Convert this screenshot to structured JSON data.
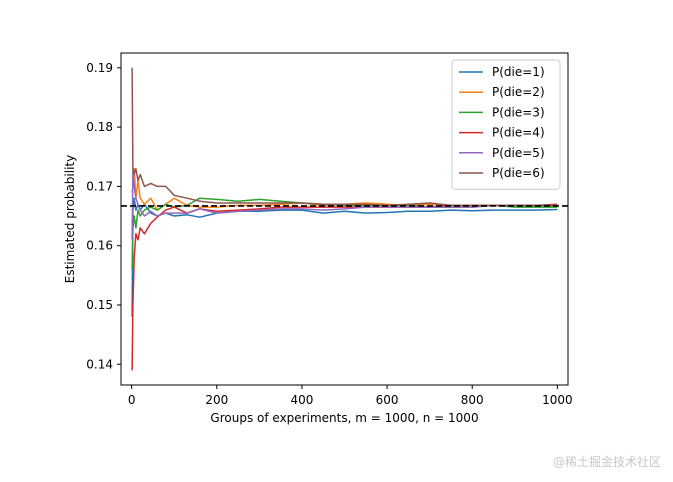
{
  "chart_data": {
    "type": "line",
    "title": "",
    "xlabel": "Groups of experiments, m = 1000, n = 1000",
    "ylabel": "Estimated probability",
    "xlim": [
      -25,
      1025
    ],
    "ylim": [
      0.1365,
      0.1925
    ],
    "xticks": [
      0,
      200,
      400,
      600,
      800,
      1000
    ],
    "xtick_labels": [
      "0",
      "200",
      "400",
      "600",
      "800",
      "1000"
    ],
    "yticks": [
      0.14,
      0.15,
      0.16,
      0.17,
      0.18,
      0.19
    ],
    "ytick_labels": [
      "0.14",
      "0.15",
      "0.16",
      "0.17",
      "0.18",
      "0.19"
    ],
    "grid": false,
    "legend_position": "upper-right",
    "reference_line": {
      "y": 0.1667,
      "style": "dashed",
      "color": "#000000"
    },
    "series": [
      {
        "name": "P(die=1)",
        "color": "#1f77b4",
        "points": [
          [
            1,
            0.148
          ],
          [
            3,
            0.166
          ],
          [
            6,
            0.168
          ],
          [
            10,
            0.166
          ],
          [
            15,
            0.167
          ],
          [
            20,
            0.166
          ],
          [
            30,
            0.167
          ],
          [
            45,
            0.1655
          ],
          [
            60,
            0.165
          ],
          [
            80,
            0.1655
          ],
          [
            100,
            0.165
          ],
          [
            130,
            0.1652
          ],
          [
            160,
            0.1648
          ],
          [
            200,
            0.1655
          ],
          [
            250,
            0.1658
          ],
          [
            300,
            0.1658
          ],
          [
            350,
            0.166
          ],
          [
            400,
            0.166
          ],
          [
            450,
            0.1655
          ],
          [
            500,
            0.1658
          ],
          [
            550,
            0.1655
          ],
          [
            600,
            0.1656
          ],
          [
            650,
            0.1658
          ],
          [
            700,
            0.1658
          ],
          [
            750,
            0.166
          ],
          [
            800,
            0.1659
          ],
          [
            850,
            0.166
          ],
          [
            900,
            0.166
          ],
          [
            950,
            0.166
          ],
          [
            1000,
            0.1661
          ]
        ]
      },
      {
        "name": "P(die=2)",
        "color": "#ff7f0e",
        "points": [
          [
            1,
            0.169
          ],
          [
            3,
            0.17
          ],
          [
            6,
            0.173
          ],
          [
            10,
            0.168
          ],
          [
            15,
            0.171
          ],
          [
            20,
            0.168
          ],
          [
            30,
            0.167
          ],
          [
            45,
            0.168
          ],
          [
            60,
            0.166
          ],
          [
            80,
            0.167
          ],
          [
            100,
            0.168
          ],
          [
            130,
            0.1668
          ],
          [
            160,
            0.1665
          ],
          [
            200,
            0.1665
          ],
          [
            250,
            0.1668
          ],
          [
            300,
            0.1668
          ],
          [
            350,
            0.167
          ],
          [
            400,
            0.1672
          ],
          [
            450,
            0.1668
          ],
          [
            500,
            0.167
          ],
          [
            550,
            0.1672
          ],
          [
            600,
            0.167
          ],
          [
            650,
            0.1668
          ],
          [
            700,
            0.167
          ],
          [
            750,
            0.1668
          ],
          [
            800,
            0.1668
          ],
          [
            850,
            0.1668
          ],
          [
            900,
            0.1668
          ],
          [
            950,
            0.1667
          ],
          [
            1000,
            0.1667
          ]
        ]
      },
      {
        "name": "P(die=3)",
        "color": "#2ca02c",
        "points": [
          [
            1,
            0.156
          ],
          [
            3,
            0.163
          ],
          [
            6,
            0.165
          ],
          [
            10,
            0.163
          ],
          [
            15,
            0.166
          ],
          [
            20,
            0.165
          ],
          [
            30,
            0.166
          ],
          [
            45,
            0.1665
          ],
          [
            60,
            0.166
          ],
          [
            80,
            0.167
          ],
          [
            100,
            0.1665
          ],
          [
            130,
            0.1668
          ],
          [
            160,
            0.168
          ],
          [
            200,
            0.1678
          ],
          [
            250,
            0.1675
          ],
          [
            300,
            0.1678
          ],
          [
            350,
            0.1675
          ],
          [
            400,
            0.1672
          ],
          [
            450,
            0.167
          ],
          [
            500,
            0.1668
          ],
          [
            550,
            0.1668
          ],
          [
            600,
            0.1668
          ],
          [
            650,
            0.1668
          ],
          [
            700,
            0.1665
          ],
          [
            750,
            0.1665
          ],
          [
            800,
            0.1665
          ],
          [
            850,
            0.1668
          ],
          [
            900,
            0.1665
          ],
          [
            950,
            0.1665
          ],
          [
            1000,
            0.1665
          ]
        ]
      },
      {
        "name": "P(die=4)",
        "color": "#d62728",
        "points": [
          [
            1,
            0.139
          ],
          [
            3,
            0.15
          ],
          [
            6,
            0.158
          ],
          [
            10,
            0.162
          ],
          [
            15,
            0.161
          ],
          [
            20,
            0.163
          ],
          [
            30,
            0.162
          ],
          [
            45,
            0.1638
          ],
          [
            60,
            0.1648
          ],
          [
            80,
            0.166
          ],
          [
            100,
            0.1665
          ],
          [
            130,
            0.1655
          ],
          [
            160,
            0.1662
          ],
          [
            200,
            0.1658
          ],
          [
            250,
            0.166
          ],
          [
            300,
            0.1662
          ],
          [
            350,
            0.1665
          ],
          [
            400,
            0.1665
          ],
          [
            450,
            0.1665
          ],
          [
            500,
            0.1665
          ],
          [
            550,
            0.1665
          ],
          [
            600,
            0.1665
          ],
          [
            650,
            0.1665
          ],
          [
            700,
            0.1665
          ],
          [
            750,
            0.1668
          ],
          [
            800,
            0.1668
          ],
          [
            850,
            0.1668
          ],
          [
            900,
            0.1668
          ],
          [
            950,
            0.1668
          ],
          [
            1000,
            0.167
          ]
        ]
      },
      {
        "name": "P(die=5)",
        "color": "#9467bd",
        "points": [
          [
            1,
            0.161
          ],
          [
            3,
            0.173
          ],
          [
            6,
            0.17
          ],
          [
            10,
            0.168
          ],
          [
            15,
            0.167
          ],
          [
            20,
            0.166
          ],
          [
            30,
            0.165
          ],
          [
            45,
            0.1658
          ],
          [
            60,
            0.165
          ],
          [
            80,
            0.1655
          ],
          [
            100,
            0.1655
          ],
          [
            130,
            0.1655
          ],
          [
            160,
            0.1662
          ],
          [
            200,
            0.1655
          ],
          [
            250,
            0.1658
          ],
          [
            300,
            0.166
          ],
          [
            350,
            0.1662
          ],
          [
            400,
            0.1662
          ],
          [
            450,
            0.166
          ],
          [
            500,
            0.1662
          ],
          [
            550,
            0.1665
          ],
          [
            600,
            0.1665
          ],
          [
            650,
            0.1665
          ],
          [
            700,
            0.1665
          ],
          [
            750,
            0.1665
          ],
          [
            800,
            0.1665
          ],
          [
            850,
            0.1668
          ],
          [
            900,
            0.1668
          ],
          [
            950,
            0.1668
          ],
          [
            1000,
            0.1668
          ]
        ]
      },
      {
        "name": "P(die=6)",
        "color": "#8c564b",
        "points": [
          [
            1,
            0.19
          ],
          [
            3,
            0.173
          ],
          [
            6,
            0.172
          ],
          [
            10,
            0.173
          ],
          [
            15,
            0.171
          ],
          [
            20,
            0.172
          ],
          [
            30,
            0.17
          ],
          [
            45,
            0.1705
          ],
          [
            60,
            0.17
          ],
          [
            80,
            0.17
          ],
          [
            100,
            0.1685
          ],
          [
            130,
            0.168
          ],
          [
            160,
            0.1675
          ],
          [
            200,
            0.1672
          ],
          [
            250,
            0.1672
          ],
          [
            300,
            0.1672
          ],
          [
            350,
            0.1672
          ],
          [
            400,
            0.1672
          ],
          [
            450,
            0.167
          ],
          [
            500,
            0.167
          ],
          [
            550,
            0.167
          ],
          [
            600,
            0.1668
          ],
          [
            650,
            0.167
          ],
          [
            700,
            0.1672
          ],
          [
            750,
            0.1668
          ],
          [
            800,
            0.1668
          ],
          [
            850,
            0.1668
          ],
          [
            900,
            0.1668
          ],
          [
            950,
            0.1668
          ],
          [
            1000,
            0.1668
          ]
        ]
      }
    ]
  },
  "watermark": "@稀土掘金技术社区"
}
